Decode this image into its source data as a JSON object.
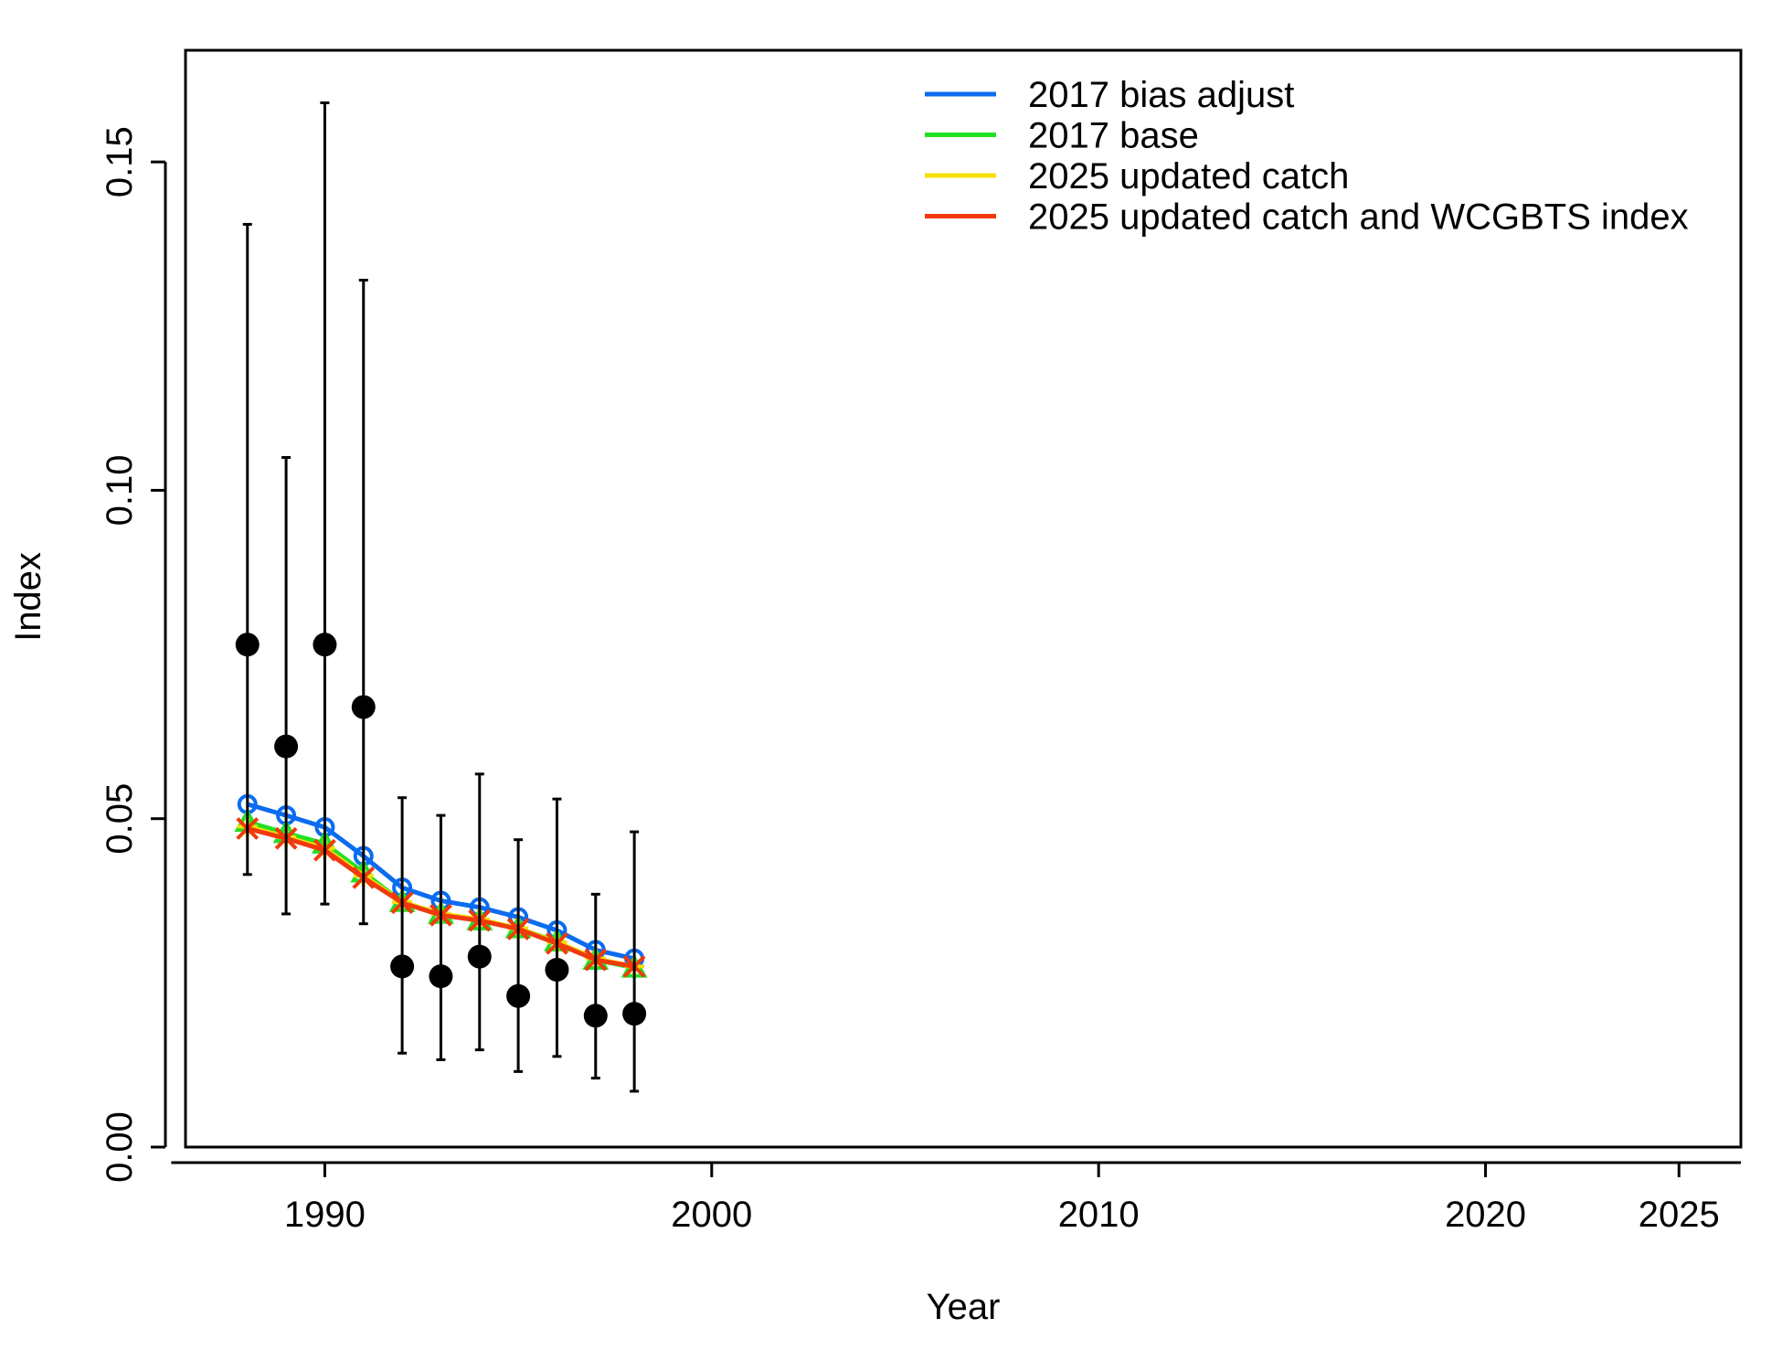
{
  "chart_data": {
    "type": "line",
    "title": "",
    "xlabel": "Year",
    "ylabel": "Index",
    "xlim": [
      1986.4,
      2026.6
    ],
    "ylim": [
      0,
      0.167
    ],
    "x_ticks": [
      1990,
      2000,
      2010,
      2020,
      2025
    ],
    "x_tick_labels": [
      "1990",
      "2000",
      "2010",
      "2020",
      "2025"
    ],
    "y_ticks": [
      0,
      0.05,
      0.1,
      0.15
    ],
    "y_tick_labels": [
      "0.00",
      "0.05",
      "0.10",
      "0.15"
    ],
    "grid": false,
    "legend_position": "top-right",
    "observed": {
      "x": [
        1988,
        1989,
        1990,
        1991,
        1992,
        1993,
        1994,
        1995,
        1996,
        1997,
        1998
      ],
      "values": [
        0.0765,
        0.061,
        0.0765,
        0.067,
        0.0275,
        0.026,
        0.029,
        0.023,
        0.027,
        0.02,
        0.0203
      ],
      "lower": [
        0.0415,
        0.0355,
        0.037,
        0.034,
        0.0143,
        0.0133,
        0.0148,
        0.0115,
        0.0138,
        0.0105,
        0.0085
      ],
      "upper": [
        0.1405,
        0.105,
        0.159,
        0.132,
        0.0532,
        0.0505,
        0.0568,
        0.0468,
        0.053,
        0.0385,
        0.048
      ]
    },
    "x": [
      1988,
      1989,
      1990,
      1991,
      1992,
      1993,
      1994,
      1995,
      1996,
      1997,
      1998
    ],
    "series": [
      {
        "name": "2017 bias adjust",
        "color": "#0B6CF0",
        "marker": "circle",
        "values": [
          0.0522,
          0.0505,
          0.0487,
          0.0443,
          0.0395,
          0.0375,
          0.0365,
          0.035,
          0.033,
          0.03,
          0.0287
        ]
      },
      {
        "name": "2017 base",
        "color": "#22E022",
        "marker": "triangle",
        "values": [
          0.0495,
          0.0478,
          0.0462,
          0.0418,
          0.0373,
          0.0355,
          0.0345,
          0.0333,
          0.0313,
          0.0285,
          0.0273
        ]
      },
      {
        "name": "2025 updated catch",
        "color": "#F5DF0A",
        "marker": "plus",
        "values": [
          0.0488,
          0.0472,
          0.0455,
          0.0413,
          0.0373,
          0.0355,
          0.0347,
          0.0333,
          0.0312,
          0.0287,
          0.0275
        ]
      },
      {
        "name": "2025 updated catch and WCGBTS index",
        "color": "#F03A0A",
        "marker": "cross",
        "values": [
          0.0485,
          0.047,
          0.0452,
          0.041,
          0.0372,
          0.0353,
          0.0345,
          0.0332,
          0.031,
          0.0285,
          0.0275
        ]
      }
    ]
  }
}
